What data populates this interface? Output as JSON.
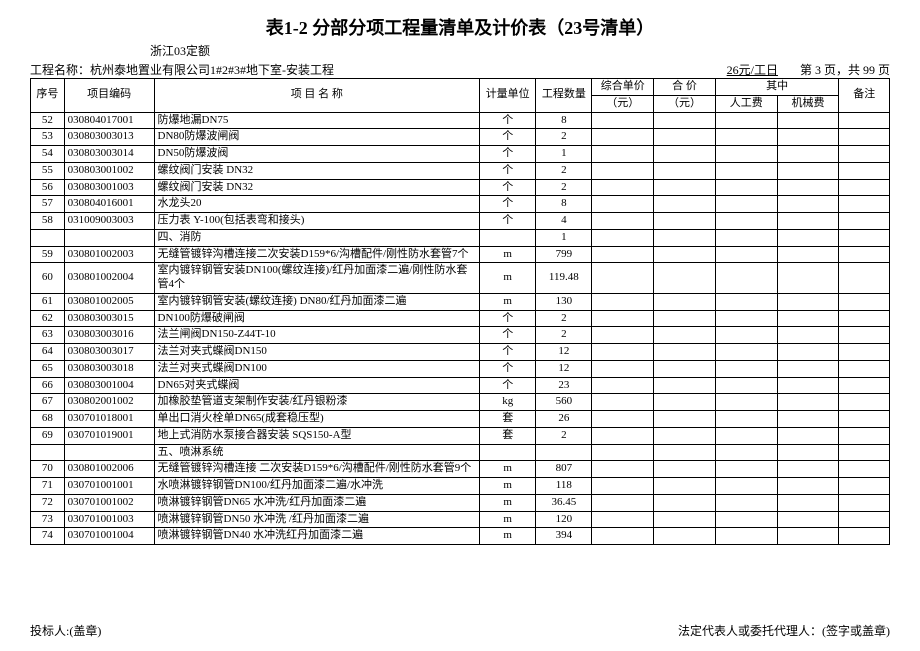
{
  "title": "表1-2  分部分项工程量清单及计价表（23号清单）",
  "quota_note": "浙江03定额",
  "project_label": "工程名称：",
  "project_name": "杭州泰地置业有限公司1#2#3#地下室-安装工程",
  "rate_text": "26元/工日",
  "page_info": "第 3 页，共 99 页",
  "header": {
    "seq": "序号",
    "code": "项目编码",
    "name": "项 目  名 称",
    "unit": "计量单位",
    "qty": "工程数量",
    "comp_price": "综合单价",
    "total_price": "合  价",
    "subhead": "其中",
    "labor": "人工费",
    "mech": "机械费",
    "yuan": "（元）",
    "note": "备注"
  },
  "rows": [
    {
      "seq": "52",
      "code": "030804017001",
      "name": "防爆地漏DN75",
      "unit": "个",
      "qty": "8"
    },
    {
      "seq": "53",
      "code": "030803003013",
      "name": "DN80防爆波闸阀",
      "unit": "个",
      "qty": "2"
    },
    {
      "seq": "54",
      "code": "030803003014",
      "name": "DN50防爆波阀",
      "unit": "个",
      "qty": "1"
    },
    {
      "seq": "55",
      "code": "030803001002",
      "name": "螺纹阀门安装  DN32",
      "unit": "个",
      "qty": "2"
    },
    {
      "seq": "56",
      "code": "030803001003",
      "name": "螺纹阀门安装  DN32",
      "unit": "个",
      "qty": "2"
    },
    {
      "seq": "57",
      "code": "030804016001",
      "name": "水龙头20",
      "unit": "个",
      "qty": "8"
    },
    {
      "seq": "58",
      "code": "031009003003",
      "name": "压力表  Y-100(包括表弯和接头)",
      "unit": "个",
      "qty": "4"
    },
    {
      "seq": "",
      "code": "",
      "name": "四、消防",
      "unit": "",
      "qty": "1"
    },
    {
      "seq": "59",
      "code": "030801002003",
      "name": "无缝管镀锌沟槽连接二次安装D159*6/沟槽配件/刚性防水套管7个",
      "unit": "m",
      "qty": "799"
    },
    {
      "seq": "60",
      "code": "030801002004",
      "name": "室内镀锌钢管安装DN100(螺纹连接)/红丹加面漆二遍/刚性防水套管4个",
      "unit": "m",
      "qty": "119.48"
    },
    {
      "seq": "61",
      "code": "030801002005",
      "name": "室内镀锌钢管安装(螺纹连接)  DN80/红丹加面漆二遍",
      "unit": "m",
      "qty": "130"
    },
    {
      "seq": "62",
      "code": "030803003015",
      "name": "DN100防爆破闸阀",
      "unit": "个",
      "qty": "2"
    },
    {
      "seq": "63",
      "code": "030803003016",
      "name": "法兰闸阀DN150-Z44T-10",
      "unit": "个",
      "qty": "2"
    },
    {
      "seq": "64",
      "code": "030803003017",
      "name": "法兰对夹式蝶阀DN150",
      "unit": "个",
      "qty": "12"
    },
    {
      "seq": "65",
      "code": "030803003018",
      "name": "法兰对夹式蝶阀DN100",
      "unit": "个",
      "qty": "12"
    },
    {
      "seq": "66",
      "code": "030803001004",
      "name": "DN65对夹式蝶阀",
      "unit": "个",
      "qty": "23"
    },
    {
      "seq": "67",
      "code": "030802001002",
      "name": "加橡胶垫管道支架制作安装/红丹银粉漆",
      "unit": "kg",
      "qty": "560"
    },
    {
      "seq": "68",
      "code": "030701018001",
      "name": "单出口消火栓单DN65(成套稳压型)",
      "unit": "套",
      "qty": "26"
    },
    {
      "seq": "69",
      "code": "030701019001",
      "name": "地上式消防水泵接合器安装 SQS150-A型",
      "unit": "套",
      "qty": "2"
    },
    {
      "seq": "",
      "code": "",
      "name": "五、喷淋系统",
      "unit": "",
      "qty": ""
    },
    {
      "seq": "70",
      "code": "030801002006",
      "name": "无缝管镀锌沟槽连接 二次安装D159*6/沟槽配件/刚性防水套管9个",
      "unit": "m",
      "qty": "807"
    },
    {
      "seq": "71",
      "code": "030701001001",
      "name": "水喷淋镀锌钢管DN100/红丹加面漆二遍/水冲洗",
      "unit": "m",
      "qty": "118"
    },
    {
      "seq": "72",
      "code": "030701001002",
      "name": "喷淋镀锌钢管DN65  水冲洗/红丹加面漆二遍",
      "unit": "m",
      "qty": "36.45"
    },
    {
      "seq": "73",
      "code": "030701001003",
      "name": "喷淋镀锌钢管DN50 水冲洗 /红丹加面漆二遍",
      "unit": "m",
      "qty": "120"
    },
    {
      "seq": "74",
      "code": "030701001004",
      "name": "喷淋镀锌钢管DN40 水冲洗红丹加面漆二遍",
      "unit": "m",
      "qty": "394"
    }
  ],
  "footer_left": "投标人:(盖章)",
  "footer_right": "法定代表人或委托代理人：(签字或盖章)"
}
